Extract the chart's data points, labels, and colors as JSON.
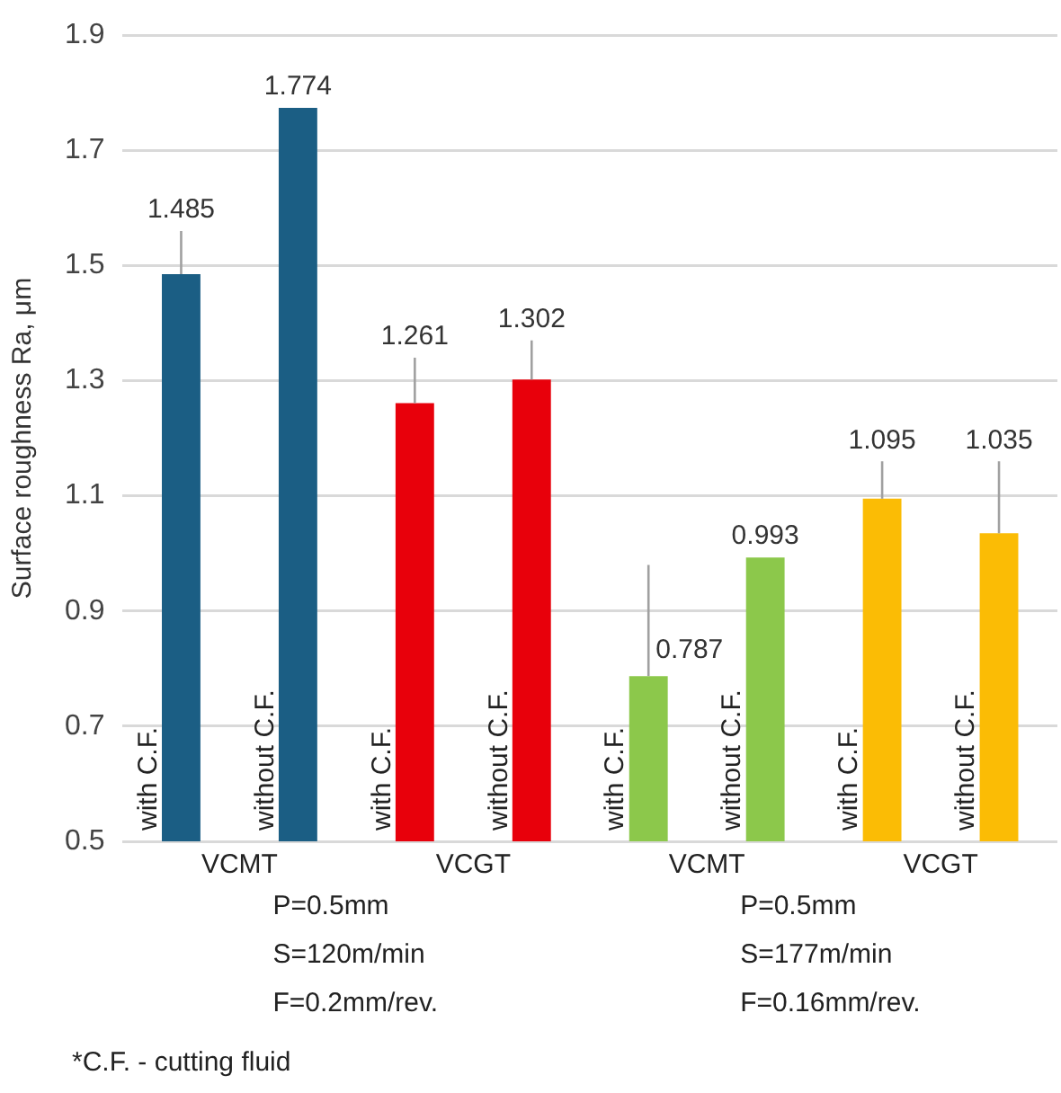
{
  "chart_data": {
    "type": "bar",
    "ylabel": "Surface roughness Ra, μm",
    "categories": [
      "with C.F.",
      "without C.F.",
      "with C.F.",
      "without C.F.",
      "with C.F.",
      "without C.F.",
      "with C.F.",
      "without C.F."
    ],
    "values": [
      1.485,
      1.774,
      1.261,
      1.302,
      0.787,
      0.993,
      1.095,
      1.035
    ],
    "colors": [
      "#1b5e84",
      "#1b5e84",
      "#e8000b",
      "#e8000b",
      "#8cc84b",
      "#8cc84b",
      "#fbbc05",
      "#fbbc05"
    ],
    "errors": [
      [
        1.485,
        1.56
      ],
      null,
      [
        1.261,
        1.34
      ],
      [
        1.302,
        1.37
      ],
      [
        0.787,
        0.98
      ],
      null,
      [
        1.095,
        1.16
      ],
      [
        1.035,
        1.16
      ]
    ],
    "ylim": [
      0.5,
      1.9
    ],
    "yticks": [
      0.5,
      0.7,
      0.9,
      1.1,
      1.3,
      1.5,
      1.7,
      1.9
    ],
    "grid": "y",
    "data_labels": true,
    "annotations": [
      "VCMT",
      "VCGT",
      "VCMT",
      "VCGT",
      "P=0.5mm\nS=120m/min\nF=0.2mm/rev.",
      "P=0.5mm\nS=177m/min\nF=0.16mm/rev.",
      "*C.F. - cutting fluid"
    ]
  }
}
